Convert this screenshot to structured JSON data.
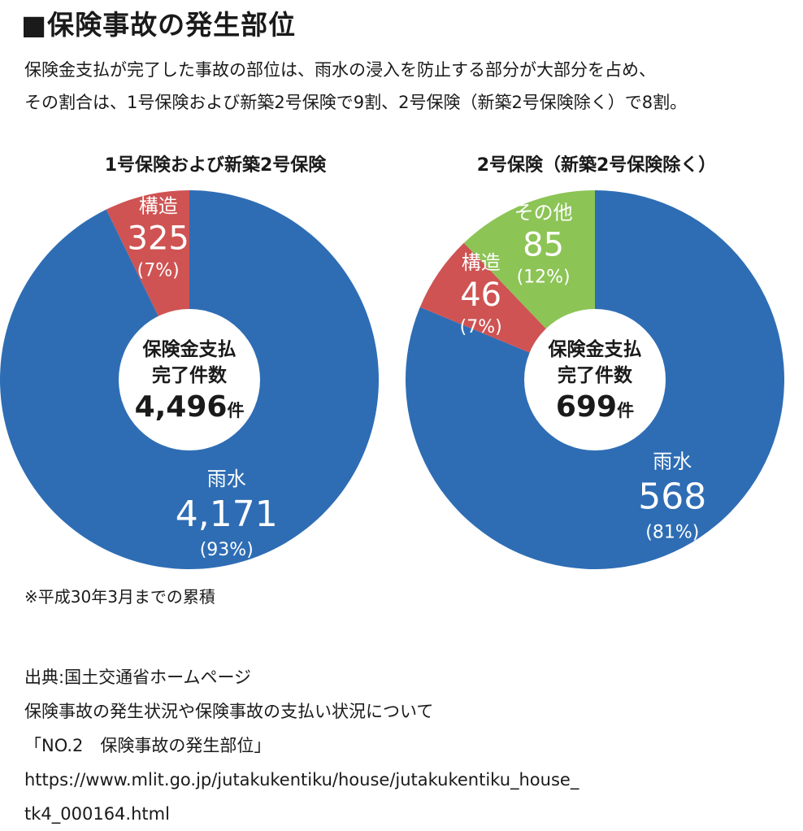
{
  "page": {
    "title": "■保険事故の発生部位",
    "description_lines": [
      "保険金支払が完了した事故の部位は、雨水の浸入を防止する部分が大部分を占め、",
      "その割合は、1号保険および新築2号保険で9割、2号保険（新築2号保険除く）で8割。"
    ],
    "note": "※平成30年3月までの累積",
    "source_lines": [
      "出典:国土交通省ホームページ",
      "保険事故の発生状況や保険事故の支払い状況について",
      "「NO.2　保険事故の発生部位」",
      "https://www.mlit.go.jp/jutakukentiku/house/jutakukentiku_house_",
      "tk4_000164.html"
    ]
  },
  "colors": {
    "rain": "#2e6db4",
    "structure": "#cf5353",
    "other": "#8cc456",
    "center": "#ffffff"
  },
  "chart_data": [
    {
      "type": "pie",
      "title": "1号保険および新築2号保険",
      "center_label_lines": [
        "保険金支払",
        "完了件数"
      ],
      "total": "4,496",
      "total_unit": "件",
      "slices": [
        {
          "name": "雨水",
          "value": 4171,
          "value_label": "4,171",
          "percent_label": "(93%)",
          "color": "#2e6db4"
        },
        {
          "name": "構造",
          "value": 325,
          "value_label": "325",
          "percent_label": "(7%)",
          "color": "#cf5353"
        }
      ]
    },
    {
      "type": "pie",
      "title": "2号保険（新築2号保険除く）",
      "center_label_lines": [
        "保険金支払",
        "完了件数"
      ],
      "total": "699",
      "total_unit": "件",
      "slices": [
        {
          "name": "雨水",
          "value": 568,
          "value_label": "568",
          "percent_label": "(81%)",
          "color": "#2e6db4"
        },
        {
          "name": "構造",
          "value": 46,
          "value_label": "46",
          "percent_label": "(7%)",
          "color": "#cf5353"
        },
        {
          "name": "その他",
          "value": 85,
          "value_label": "85",
          "percent_label": "(12%)",
          "color": "#8cc456"
        }
      ]
    }
  ]
}
